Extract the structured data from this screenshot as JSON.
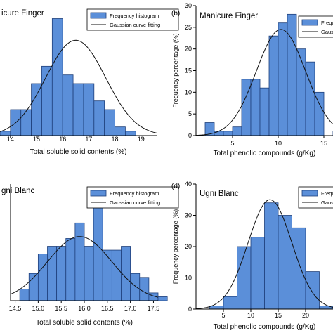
{
  "colors": {
    "bar_fill": "#5b8fd9",
    "bar_stroke": "#1e3f7a",
    "curve": "#111111",
    "axis": "#000000"
  },
  "chart_data": [
    {
      "type": "bar",
      "panel_label": "",
      "title": "icure Finger",
      "xlabel": "Total soluble solid contents (%)",
      "ylabel": "",
      "xlim": [
        13.6,
        19.6
      ],
      "xticks": [
        "14",
        "15",
        "16",
        "17",
        "18",
        "19"
      ],
      "xtick_values": [
        14,
        15,
        16,
        17,
        18,
        19
      ],
      "ylim": [
        0,
        30
      ],
      "bin_width": 0.4,
      "bin_start": 13.6,
      "values": [
        1,
        6,
        6,
        12,
        16,
        27,
        14,
        12,
        12,
        8,
        6,
        2,
        1
      ],
      "curve": {
        "mean": 16.5,
        "sd": 1.15,
        "peak": 22
      },
      "legend": [
        "Frequency histogram",
        "Gaussian curve fitting"
      ],
      "legend_position": "top-right"
    },
    {
      "type": "bar",
      "panel_label": "(b)",
      "title": "Manicure Finger",
      "xlabel": "Total phenolic compounds (g/Kg)",
      "ylabel": "Frequency percentage (%)",
      "xlim": [
        1,
        16
      ],
      "xticks": [
        "5",
        "10",
        "15"
      ],
      "xtick_values": [
        5,
        10,
        15
      ],
      "ylim": [
        0,
        30
      ],
      "yticks": [
        "0",
        "5",
        "10",
        "15",
        "20",
        "25",
        "30"
      ],
      "ytick_values": [
        0,
        5,
        10,
        15,
        20,
        25,
        30
      ],
      "bin_width": 1,
      "bin_start": 2,
      "values": [
        3,
        1,
        1,
        2,
        13,
        13,
        11,
        23,
        26,
        28,
        20,
        17,
        10,
        0,
        1
      ],
      "curve": {
        "mean": 10.3,
        "sd": 2.7,
        "peak": 24.5
      },
      "legend": [
        "Frequency histogram",
        "Gaussian curve fitting"
      ],
      "legend_position": "top-right"
    },
    {
      "type": "bar",
      "panel_label": "",
      "title": "gni Blanc",
      "xlabel": "Total soluble solid contents (%)",
      "ylabel": "",
      "xlim": [
        14.4,
        17.6
      ],
      "xticks": [
        "14.5",
        "15.0",
        "15.5",
        "16.0",
        "16.5",
        "17.0",
        "17.5"
      ],
      "xtick_values": [
        14.5,
        15.0,
        15.5,
        16.0,
        16.5,
        17.0,
        17.5
      ],
      "ylim": [
        0,
        30
      ],
      "bin_width": 0.2,
      "bin_start": 14.6,
      "values": [
        3,
        7,
        12,
        14,
        14,
        16,
        20,
        14,
        25,
        13,
        13,
        14,
        7,
        6,
        2,
        1
      ],
      "curve": {
        "mean": 15.9,
        "sd": 0.7,
        "peak": 16.5
      },
      "legend": [
        "Frequency histogram",
        "Gaussian curve fitting"
      ],
      "legend_position": "top-right"
    },
    {
      "type": "bar",
      "panel_label": "(d)",
      "title": "Ugni Blanc",
      "xlabel": "Total phenolic compounds (g/Kg)",
      "ylabel": "Frequency percentage (%)",
      "xlim": [
        0,
        25
      ],
      "xticks": [
        "5",
        "10",
        "15",
        "20"
      ],
      "xtick_values": [
        5,
        10,
        15,
        20
      ],
      "ylim": [
        0,
        40
      ],
      "yticks": [
        "0",
        "10",
        "20",
        "30",
        "40"
      ],
      "ytick_values": [
        0,
        10,
        20,
        30,
        40
      ],
      "bin_width": 2.5,
      "bin_start": 2.5,
      "values": [
        1,
        4,
        20,
        23,
        34,
        30,
        26,
        12,
        1
      ],
      "curve": {
        "mean": 13.5,
        "sd": 4,
        "peak": 35
      },
      "legend": [
        "Frequency histogram",
        "Gaussian curve fitting"
      ],
      "legend_position": "top-right"
    }
  ]
}
